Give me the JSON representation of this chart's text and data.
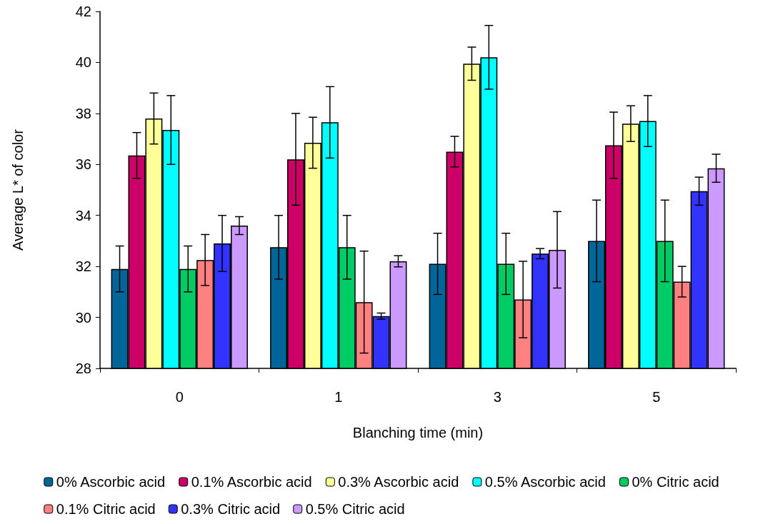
{
  "chart_data": {
    "type": "bar",
    "xlabel": "Blanching time (min)",
    "ylabel": "Average L* of color",
    "categories": [
      "0",
      "1",
      "3",
      "5"
    ],
    "series": [
      {
        "name": "0% Ascorbic acid",
        "color": "#006699",
        "values": [
          31.9,
          32.75,
          32.1,
          33.0
        ],
        "errors": [
          0.9,
          1.25,
          1.2,
          1.6
        ]
      },
      {
        "name": "0.1% Ascorbic acid",
        "color": "#cc0066",
        "values": [
          36.35,
          36.2,
          36.5,
          36.75
        ],
        "errors": [
          0.9,
          1.8,
          0.6,
          1.3
        ]
      },
      {
        "name": "0.3% Ascorbic acid",
        "color": "#ffff99",
        "values": [
          37.8,
          36.85,
          39.95,
          37.6
        ],
        "errors": [
          1.0,
          1.0,
          0.65,
          0.7
        ]
      },
      {
        "name": "0.5% Ascorbic acid",
        "color": "#00ffff",
        "values": [
          37.35,
          37.65,
          40.2,
          37.7
        ],
        "errors": [
          1.35,
          1.4,
          1.25,
          1.0
        ]
      },
      {
        "name": "0% Citric acid",
        "color": "#00cc66",
        "values": [
          31.9,
          32.75,
          32.1,
          33.0
        ],
        "errors": [
          0.9,
          1.25,
          1.2,
          1.6
        ]
      },
      {
        "name": "0.1% Citric acid",
        "color": "#ff8080",
        "values": [
          32.25,
          30.6,
          30.7,
          31.4
        ],
        "errors": [
          1.0,
          2.0,
          1.5,
          0.6
        ]
      },
      {
        "name": "0.3% Citric acid",
        "color": "#3333ff",
        "values": [
          32.9,
          30.05,
          32.5,
          34.95
        ],
        "errors": [
          1.1,
          0.12,
          0.2,
          0.55
        ]
      },
      {
        "name": "0.5% Citric acid",
        "color": "#cc99ff",
        "values": [
          33.6,
          32.2,
          32.65,
          35.85
        ],
        "errors": [
          0.35,
          0.22,
          1.5,
          0.55
        ]
      }
    ],
    "ylim": [
      28,
      42
    ],
    "yticks": [
      28,
      30,
      32,
      34,
      36,
      38,
      40,
      42
    ],
    "grid": false,
    "legend": "bottom"
  }
}
